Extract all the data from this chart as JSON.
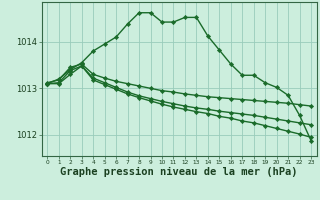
{
  "background_color": "#cceedd",
  "grid_color": "#99ccbb",
  "line_color": "#1a6b2a",
  "marker_color": "#1a6b2a",
  "xlabel": "Graphe pression niveau de la mer (hPa)",
  "xlabel_fontsize": 7.5,
  "yticks": [
    1012,
    1013,
    1014
  ],
  "xlim": [
    -0.5,
    23.5
  ],
  "ylim": [
    1011.55,
    1014.85
  ],
  "series": [
    {
      "x": [
        0,
        1,
        2,
        3,
        4,
        5,
        6,
        7,
        8,
        9,
        10,
        11,
        12,
        13,
        14,
        15,
        16,
        17,
        18,
        19,
        20,
        21,
        22,
        23
      ],
      "y": [
        1013.1,
        1013.2,
        1013.4,
        1013.55,
        1013.8,
        1013.95,
        1014.1,
        1014.38,
        1014.62,
        1014.62,
        1014.42,
        1014.42,
        1014.52,
        1014.52,
        1014.12,
        1013.82,
        1013.52,
        1013.28,
        1013.28,
        1013.12,
        1013.02,
        1012.85,
        1012.42,
        1011.88
      ],
      "marker": "D",
      "markersize": 2.2,
      "linewidth": 1.0
    },
    {
      "x": [
        0,
        1,
        2,
        3,
        4,
        5,
        6,
        7,
        8,
        9,
        10,
        11,
        12,
        13,
        14,
        15,
        16,
        17,
        18,
        19,
        20,
        21,
        22,
        23
      ],
      "y": [
        1013.12,
        1013.18,
        1013.45,
        1013.52,
        1013.3,
        1013.22,
        1013.15,
        1013.1,
        1013.05,
        1013.0,
        1012.95,
        1012.92,
        1012.88,
        1012.85,
        1012.82,
        1012.8,
        1012.78,
        1012.76,
        1012.74,
        1012.72,
        1012.7,
        1012.68,
        1012.65,
        1012.62
      ],
      "marker": "D",
      "markersize": 2.2,
      "linewidth": 1.0
    },
    {
      "x": [
        0,
        1,
        2,
        3,
        4,
        5,
        6,
        7,
        8,
        9,
        10,
        11,
        12,
        13,
        14,
        15,
        16,
        17,
        18,
        19,
        20,
        21,
        22,
        23
      ],
      "y": [
        1013.1,
        1013.12,
        1013.38,
        1013.48,
        1013.22,
        1013.12,
        1013.02,
        1012.92,
        1012.84,
        1012.78,
        1012.72,
        1012.67,
        1012.62,
        1012.58,
        1012.55,
        1012.51,
        1012.48,
        1012.45,
        1012.42,
        1012.38,
        1012.34,
        1012.3,
        1012.26,
        1012.22
      ],
      "marker": "D",
      "markersize": 2.2,
      "linewidth": 1.0
    },
    {
      "x": [
        0,
        1,
        2,
        3,
        4,
        5,
        6,
        7,
        8,
        9,
        10,
        11,
        12,
        13,
        14,
        15,
        16,
        17,
        18,
        19,
        20,
        21,
        22,
        23
      ],
      "y": [
        1013.1,
        1013.1,
        1013.3,
        1013.48,
        1013.18,
        1013.08,
        1012.98,
        1012.88,
        1012.8,
        1012.73,
        1012.66,
        1012.6,
        1012.55,
        1012.5,
        1012.46,
        1012.4,
        1012.36,
        1012.3,
        1012.26,
        1012.2,
        1012.14,
        1012.08,
        1012.02,
        1011.95
      ],
      "marker": "D",
      "markersize": 2.2,
      "linewidth": 1.0
    }
  ]
}
